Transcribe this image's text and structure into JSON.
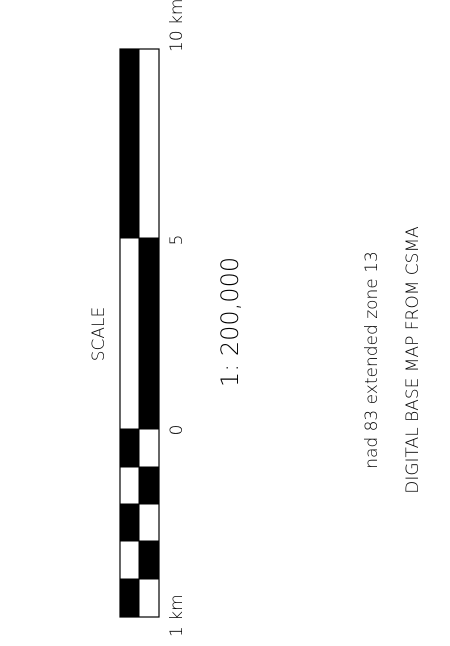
{
  "scale_label": "SCALE",
  "ratio": "1: 200,000",
  "projection_note": "nad 83 extended zone 13",
  "source_note": "DIGITAL BASE MAP FROM CSMA",
  "ticks": {
    "left": "1 km",
    "zero": "0",
    "mid": "5",
    "right": "10 km"
  },
  "colors": {
    "ink": "#000000",
    "paper": "#ffffff"
  }
}
